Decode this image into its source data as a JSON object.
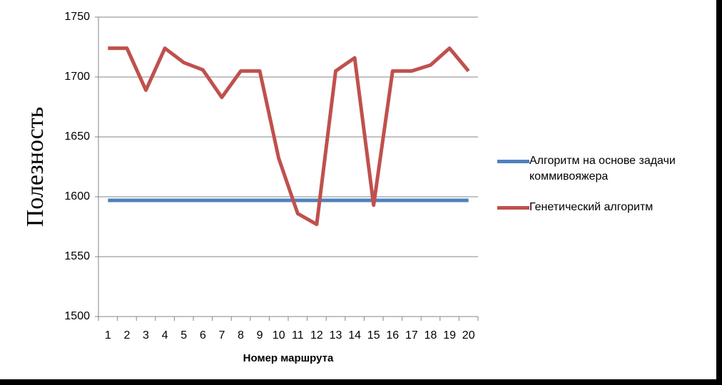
{
  "chart_data": {
    "type": "line",
    "y_label": "Полезность",
    "x_label": "Номер маршрута",
    "categories": [
      "1",
      "2",
      "3",
      "4",
      "5",
      "6",
      "7",
      "8",
      "9",
      "10",
      "11",
      "12",
      "13",
      "14",
      "15",
      "16",
      "17",
      "18",
      "19",
      "20"
    ],
    "series": [
      {
        "name": "Алгоритм на основе задачи коммивояжера",
        "color": "#4f81bd",
        "values": [
          1597,
          1597,
          1597,
          1597,
          1597,
          1597,
          1597,
          1597,
          1597,
          1597,
          1597,
          1597,
          1597,
          1597,
          1597,
          1597,
          1597,
          1597,
          1597,
          1597
        ]
      },
      {
        "name": "Генетический алгоритм",
        "color": "#c0504d",
        "values": [
          1724,
          1724,
          1689,
          1724,
          1712,
          1706,
          1683,
          1705,
          1705,
          1632,
          1586,
          1577,
          1705,
          1716,
          1593,
          1705,
          1705,
          1710,
          1724,
          1705
        ]
      }
    ],
    "ylim": [
      1500,
      1750
    ],
    "yticks": [
      1500,
      1550,
      1600,
      1650,
      1700,
      1750
    ],
    "grid": true,
    "legend": "right"
  }
}
